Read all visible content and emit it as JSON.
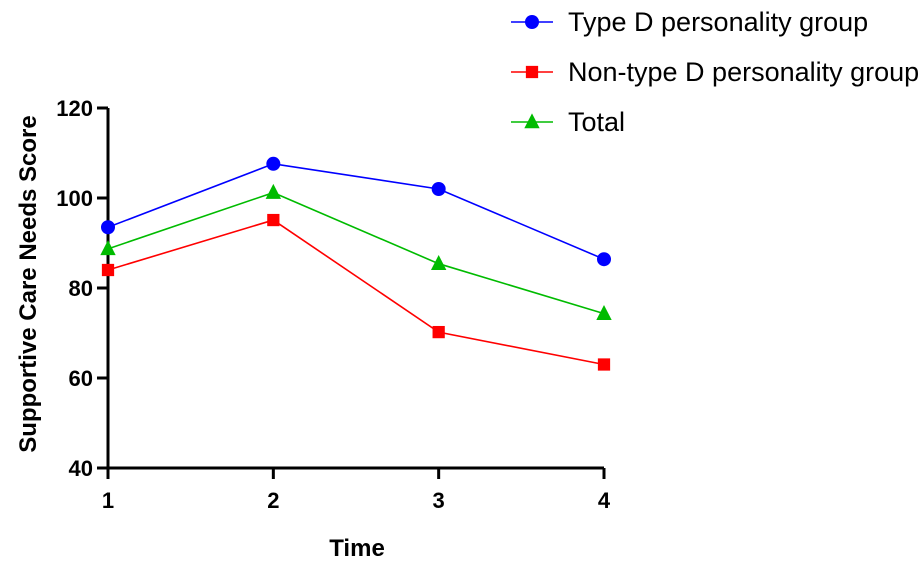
{
  "chart_data": {
    "type": "line",
    "title": "",
    "xlabel": "Time",
    "ylabel": "Supportive Care Needs Score",
    "x": [
      1,
      2,
      3,
      4
    ],
    "xlim": [
      1,
      4
    ],
    "ylim": [
      40,
      120
    ],
    "xticks": [
      "1",
      "2",
      "3",
      "4"
    ],
    "yticks": [
      "40",
      "60",
      "80",
      "100",
      "120"
    ],
    "ytick_values": [
      40,
      60,
      80,
      100,
      120
    ],
    "grid": false,
    "legend_position": "top-right",
    "series": [
      {
        "name": "Type D personality group",
        "values": [
          93.5,
          107.6,
          102.0,
          86.4
        ],
        "color": "#0000ff",
        "marker": "circle"
      },
      {
        "name": "Non-type D personality group",
        "values": [
          84.0,
          95.1,
          70.2,
          63.0
        ],
        "color": "#ff0000",
        "marker": "square"
      },
      {
        "name": "Total",
        "values": [
          88.7,
          101.2,
          85.4,
          74.3
        ],
        "color": "#00bb00",
        "marker": "triangle"
      }
    ]
  }
}
